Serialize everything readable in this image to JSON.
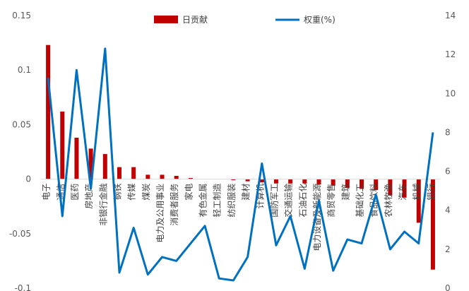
{
  "chart_data": {
    "type": "bar+line",
    "title": "",
    "categories": [
      "电子",
      "通信",
      "医药",
      "房地产",
      "非银行金融",
      "钢铁",
      "传媒",
      "煤炭",
      "电力及公用事业",
      "消费者服务",
      "家电",
      "有色金属",
      "轻工制造",
      "纺织服装",
      "建材",
      "计算机",
      "国防军工",
      "交通运输",
      "石油石化",
      "电力设备及新能源",
      "商贸零售",
      "建筑",
      "基础化工",
      "食品饮料",
      "农林牧渔",
      "汽车",
      "机械",
      "银行"
    ],
    "series": [
      {
        "name": "日贡献",
        "type": "bar",
        "axis": "left",
        "color": "#C00000",
        "values": [
          0.123,
          0.062,
          0.038,
          0.028,
          0.023,
          0.011,
          0.011,
          0.004,
          0.004,
          0.003,
          0.001,
          0,
          0,
          -0.001,
          -0.002,
          -0.003,
          -0.004,
          -0.004,
          -0.004,
          -0.005,
          -0.006,
          -0.008,
          -0.009,
          -0.01,
          -0.015,
          -0.017,
          -0.04,
          -0.083
        ]
      },
      {
        "name": "权重(%)",
        "type": "line",
        "axis": "right",
        "color": "#0070C0",
        "values": [
          10.8,
          3.7,
          11.2,
          5.1,
          12.3,
          0.8,
          3.1,
          0.7,
          1.6,
          1.4,
          2.3,
          3.2,
          0.5,
          0.4,
          1.6,
          6.4,
          2.2,
          3.7,
          1.0,
          4.5,
          0.9,
          2.5,
          2.3,
          4.8,
          2.0,
          2.9,
          2.3,
          8.0
        ]
      }
    ],
    "y_left": {
      "min": -0.1,
      "max": 0.15,
      "ticks": [
        -0.1,
        -0.05,
        0,
        0.05,
        0.1,
        0.15
      ],
      "tick_labels": [
        "-0.1",
        "-0.05",
        "0",
        "0.05",
        "0.1",
        "0.15"
      ]
    },
    "y_right": {
      "min": 0,
      "max": 14,
      "ticks": [
        0,
        2,
        4,
        6,
        8,
        10,
        12,
        14
      ],
      "tick_labels": [
        "0",
        "2",
        "4",
        "6",
        "8",
        "10",
        "12",
        "14"
      ]
    },
    "grid": false,
    "legend_position": "top-center"
  }
}
